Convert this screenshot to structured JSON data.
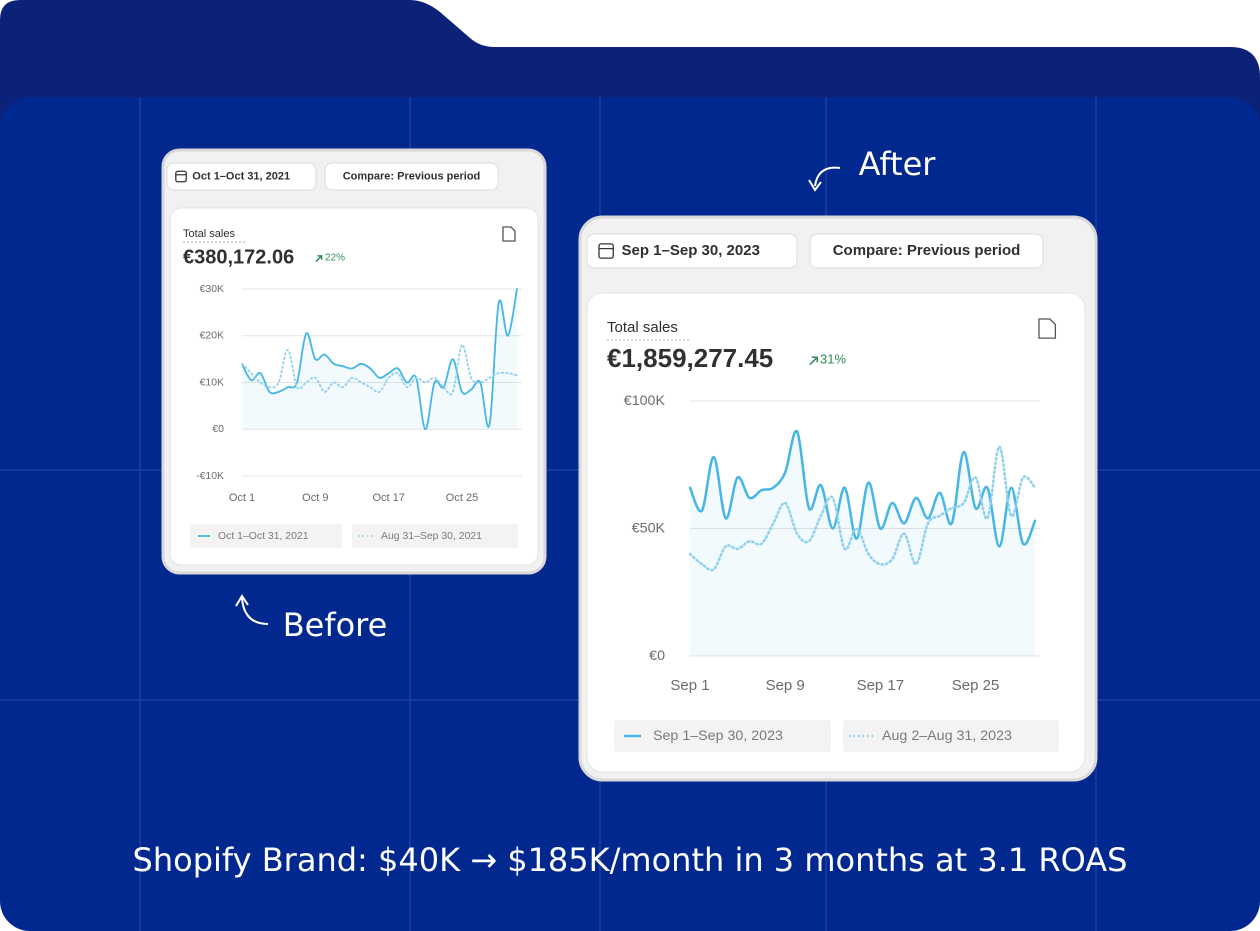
{
  "caption": "Shopify Brand: $40K → $185K/month in 3 months at 3.1 ROAS",
  "before_label": "Before",
  "after_label": "After",
  "chart_data": [
    {
      "type": "line",
      "date_range": "Oct 1–Oct 31, 2021",
      "compare": "Compare: Previous period",
      "title": "Total sales",
      "total": "€380,172.06",
      "change": "22%",
      "categories": [
        "Oct 1",
        null,
        null,
        null,
        null,
        null,
        null,
        null,
        "Oct 9",
        null,
        null,
        null,
        null,
        null,
        null,
        null,
        "Oct 17",
        null,
        null,
        null,
        null,
        null,
        null,
        null,
        "Oct 25",
        null,
        null,
        null,
        null,
        null,
        null
      ],
      "series": [
        {
          "name": "Oct 1–Oct 31, 2021",
          "color": "#45b6e6",
          "style": "solid",
          "values": [
            14000,
            10500,
            12000,
            8000,
            8000,
            9000,
            10000,
            20500,
            15000,
            16000,
            14000,
            13500,
            13000,
            14000,
            13000,
            11000,
            12000,
            13000,
            10000,
            11000,
            0,
            10000,
            9000,
            15000,
            8000,
            8500,
            10000,
            1000,
            27000,
            20000,
            30000
          ]
        },
        {
          "name": "Aug 31–Sep 30, 2021",
          "color": "#8fd0ee",
          "style": "dotted",
          "values": [
            14000,
            12000,
            10000,
            9000,
            10000,
            17000,
            9000,
            10000,
            11000,
            8000,
            10000,
            9000,
            11000,
            10000,
            9000,
            8000,
            11000,
            12000,
            9000,
            11000,
            10000,
            11000,
            9000,
            8000,
            18000,
            11000,
            10000,
            11000,
            12000,
            12000,
            11500
          ]
        }
      ],
      "ylim": [
        -10000,
        30000
      ],
      "yticks": [
        {
          "value": -10000,
          "label": "-€10K"
        },
        {
          "value": 0,
          "label": "€0"
        },
        {
          "value": 10000,
          "label": "€10K"
        },
        {
          "value": 20000,
          "label": "€20K"
        },
        {
          "value": 30000,
          "label": "€30K"
        }
      ],
      "grid": true
    },
    {
      "type": "line",
      "date_range": "Sep 1–Sep 30, 2023",
      "compare": "Compare: Previous period",
      "title": "Total sales",
      "total": "€1,859,277.45",
      "change": "31%",
      "categories": [
        "Sep 1",
        null,
        null,
        null,
        null,
        null,
        null,
        null,
        "Sep 9",
        null,
        null,
        null,
        null,
        null,
        null,
        null,
        "Sep 17",
        null,
        null,
        null,
        null,
        null,
        null,
        null,
        "Sep 25",
        null,
        null,
        null,
        null,
        null
      ],
      "series": [
        {
          "name": "Sep 1–Sep 30, 2023",
          "color": "#45b6e6",
          "style": "solid",
          "values": [
            66000,
            57000,
            78000,
            54000,
            70000,
            62000,
            65000,
            66000,
            72000,
            88000,
            58000,
            67000,
            50000,
            66000,
            46000,
            68000,
            50000,
            60000,
            52000,
            62000,
            54000,
            64000,
            52000,
            80000,
            58000,
            66000,
            43000,
            66000,
            44000,
            53000
          ]
        },
        {
          "name": "Aug 2–Aug 31, 2023",
          "color": "#8fd0ee",
          "style": "dotted",
          "values": [
            40000,
            36000,
            34000,
            43000,
            42000,
            45000,
            44000,
            52000,
            60000,
            48000,
            45000,
            55000,
            62000,
            42000,
            50000,
            40000,
            36000,
            38000,
            48000,
            36000,
            52000,
            55000,
            58000,
            60000,
            70000,
            54000,
            82000,
            55000,
            70000,
            66000
          ]
        }
      ],
      "ylim": [
        0,
        100000
      ],
      "yticks": [
        {
          "value": 0,
          "label": "€0"
        },
        {
          "value": 50000,
          "label": "€50K"
        },
        {
          "value": 100000,
          "label": "€100K"
        }
      ],
      "grid": true
    }
  ]
}
